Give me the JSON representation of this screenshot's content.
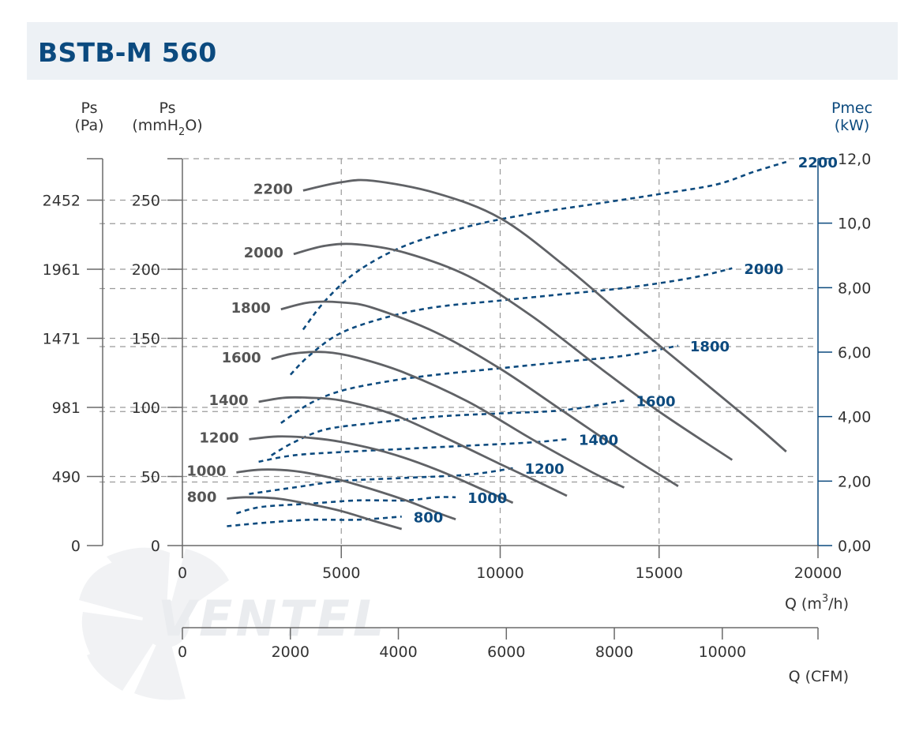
{
  "header": {
    "title": "BSTB-M 560"
  },
  "chart_data": {
    "type": "line",
    "title": "BSTB-M 560",
    "axes": {
      "left_outer": {
        "label_line1": "Ps",
        "label_line2": "(Pa)",
        "ticks": [
          "0",
          "490",
          "981",
          "1471",
          "1961",
          "2452"
        ]
      },
      "left_inner": {
        "label_line1": "Ps",
        "label_line2_pre": "(mmH",
        "label_line2_sub": "2",
        "label_line2_post": "O)",
        "ticks": [
          "0",
          "50",
          "100",
          "150",
          "200",
          "250"
        ],
        "ylim": [
          0,
          280
        ]
      },
      "right": {
        "label_line1": "Pmec",
        "label_line2": "(kW)",
        "ticks": [
          "0,00",
          "2,00",
          "4,00",
          "6,00",
          "8,00",
          "10,0",
          "12,0"
        ],
        "ylim": [
          0,
          12
        ]
      },
      "x_top": {
        "label_pre": "Q (m",
        "label_sup": "3",
        "label_post": "/h)",
        "ticks": [
          "0",
          "5000",
          "10000",
          "15000",
          "20000"
        ],
        "xlim": [
          0,
          20000
        ]
      },
      "x_bottom": {
        "label": "Q (CFM)",
        "ticks": [
          "0",
          "2000",
          "4000",
          "6000",
          "8000",
          "10000"
        ],
        "xlim": [
          0,
          11772
        ]
      }
    },
    "grid": true,
    "extra_grid_lines_mmH2O": [
      46,
      97,
      144,
      186,
      233
    ],
    "watermark": "VENTEL",
    "colors": {
      "pressure": "#606266",
      "power": "#0c4a7e",
      "grid": "#9a9a9a",
      "axis": "#6a6a6a"
    },
    "pressure_series": [
      {
        "name": "2200",
        "x": [
          3800,
          5000,
          6000,
          8000,
          10000,
          12000,
          14000,
          16000,
          18000,
          19000
        ],
        "y": [
          257,
          263,
          264,
          255,
          237,
          203,
          164,
          126,
          88,
          68
        ]
      },
      {
        "name": "2000",
        "x": [
          3500,
          4500,
          5500,
          7000,
          9000,
          11000,
          13000,
          15000,
          17300
        ],
        "y": [
          211,
          217,
          218,
          212,
          195,
          166,
          131,
          97,
          62
        ]
      },
      {
        "name": "1800",
        "x": [
          3100,
          4000,
          5000,
          6000,
          8000,
          10000,
          12000,
          14000,
          15600
        ],
        "y": [
          171,
          176,
          176,
          172,
          154,
          128,
          97,
          66,
          43
        ]
      },
      {
        "name": "1600",
        "x": [
          2800,
          3500,
          4500,
          5500,
          7000,
          9000,
          11000,
          12900,
          13900
        ],
        "y": [
          135,
          139,
          140,
          136,
          125,
          104,
          77,
          53,
          42
        ]
      },
      {
        "name": "1400",
        "x": [
          2400,
          3200,
          4000,
          5000,
          6500,
          8000,
          10000,
          11200,
          12100
        ],
        "y": [
          104,
          107,
          107,
          105,
          96,
          81,
          59,
          46,
          36
        ]
      },
      {
        "name": "1200",
        "x": [
          2100,
          3000,
          4000,
          5000,
          6500,
          8000,
          9500,
          10400
        ],
        "y": [
          77,
          79,
          78,
          75,
          67,
          55,
          40,
          31
        ]
      },
      {
        "name": "1000",
        "x": [
          1700,
          2500,
          3500,
          4500,
          5500,
          7000,
          8000,
          8600
        ],
        "y": [
          53,
          55,
          54,
          50,
          44,
          33,
          24,
          19
        ]
      },
      {
        "name": "800",
        "x": [
          1400,
          2000,
          3000,
          4000,
          5000,
          6000,
          6900
        ],
        "y": [
          34,
          35,
          34,
          30,
          25,
          18,
          12
        ]
      }
    ],
    "power_series": [
      {
        "name": "2200",
        "x": [
          3800,
          4500,
          5500,
          7000,
          9000,
          11000,
          13000,
          15000,
          16800,
          18000,
          19000
        ],
        "y": [
          6.7,
          7.6,
          8.5,
          9.3,
          9.9,
          10.3,
          10.6,
          10.9,
          11.2,
          11.6,
          11.9
        ]
      },
      {
        "name": "2000",
        "x": [
          3400,
          4000,
          5000,
          6500,
          8000,
          10000,
          12000,
          14000,
          16000,
          17300
        ],
        "y": [
          5.3,
          5.9,
          6.6,
          7.1,
          7.4,
          7.6,
          7.8,
          8.0,
          8.3,
          8.6
        ]
      },
      {
        "name": "1800",
        "x": [
          3100,
          4000,
          5000,
          6500,
          8000,
          10000,
          12000,
          14000,
          15600
        ],
        "y": [
          3.8,
          4.4,
          4.8,
          5.1,
          5.3,
          5.5,
          5.7,
          5.9,
          6.2
        ]
      },
      {
        "name": "1600",
        "x": [
          2800,
          3500,
          4500,
          6000,
          8000,
          10000,
          12000,
          13900
        ],
        "y": [
          2.8,
          3.2,
          3.6,
          3.8,
          4.0,
          4.1,
          4.2,
          4.5
        ]
      },
      {
        "name": "1400",
        "x": [
          2400,
          3500,
          5000,
          7000,
          9000,
          11000,
          12100
        ],
        "y": [
          2.6,
          2.8,
          2.9,
          3.0,
          3.1,
          3.2,
          3.3
        ]
      },
      {
        "name": "1200",
        "x": [
          2100,
          3500,
          5000,
          7000,
          9000,
          10400
        ],
        "y": [
          1.6,
          1.8,
          2.0,
          2.1,
          2.2,
          2.4
        ]
      },
      {
        "name": "1000",
        "x": [
          1700,
          2500,
          4000,
          5500,
          7000,
          8000,
          8600
        ],
        "y": [
          1.0,
          1.2,
          1.3,
          1.4,
          1.4,
          1.5,
          1.5
        ]
      },
      {
        "name": "800",
        "x": [
          1400,
          2500,
          4000,
          5500,
          6900
        ],
        "y": [
          0.6,
          0.7,
          0.8,
          0.8,
          0.9
        ]
      }
    ]
  }
}
